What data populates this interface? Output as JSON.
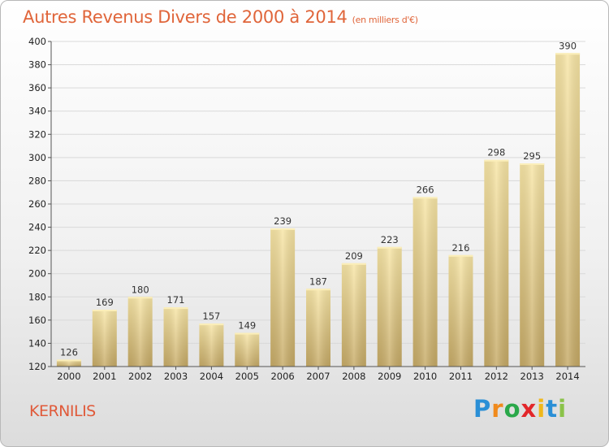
{
  "header": {
    "title": "Autres Revenus Divers de 2000 à 2014",
    "unit": "(en milliers d'€)"
  },
  "location": "KERNILIS",
  "logo": {
    "text": "Proxiti",
    "letters": [
      "P",
      "r",
      "o",
      "x",
      "i",
      "t",
      "i"
    ]
  },
  "colors": {
    "title": "#e0653a",
    "bar_top": "#f7e3a0",
    "bar_bottom": "#c8ad6a",
    "grid": "#d9d9d9"
  },
  "chart_data": {
    "type": "bar",
    "title": "Autres Revenus Divers de 2000 à 2014",
    "subtitle": "(en milliers d'€)",
    "categories": [
      "2000",
      "2001",
      "2002",
      "2003",
      "2004",
      "2005",
      "2006",
      "2007",
      "2008",
      "2009",
      "2010",
      "2011",
      "2012",
      "2013",
      "2014"
    ],
    "values": [
      126,
      169,
      180,
      171,
      157,
      149,
      239,
      187,
      209,
      223,
      266,
      216,
      298,
      295,
      390
    ],
    "ylim": [
      120,
      400
    ],
    "yticks": [
      120,
      140,
      160,
      180,
      200,
      220,
      240,
      260,
      280,
      300,
      320,
      340,
      360,
      380,
      400
    ],
    "grid": true,
    "legend": "none"
  }
}
